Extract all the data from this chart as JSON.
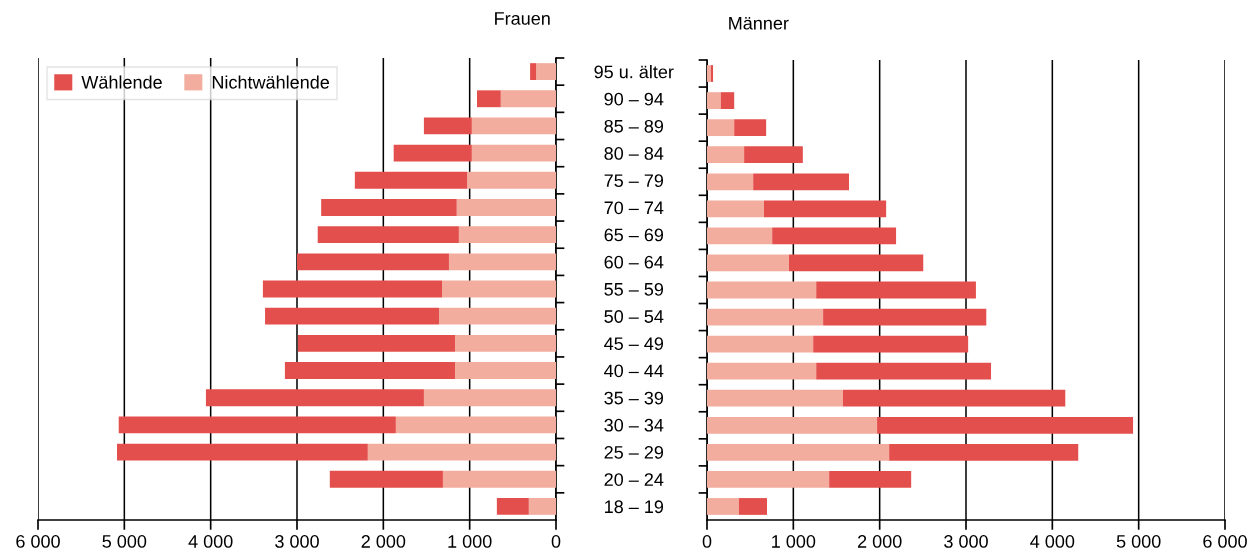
{
  "chart_data": [
    {
      "type": "bar",
      "title": "Frauen",
      "orientation": "horizontal",
      "stacked": true,
      "categories": [
        "95 u. älter",
        "90 – 94",
        "85 – 89",
        "80 – 84",
        "75 – 79",
        "70 – 74",
        "65 – 69",
        "60 – 64",
        "55 – 59",
        "50 – 54",
        "45 – 49",
        "40 – 44",
        "35 – 39",
        "30 – 34",
        "25 – 29",
        "20 – 24",
        "18 – 19"
      ],
      "series": [
        {
          "name": "Nichtwählende",
          "color": "#f2ad9e",
          "values": [
            230,
            640,
            975,
            975,
            1030,
            1150,
            1125,
            1240,
            1320,
            1355,
            1170,
            1170,
            1530,
            1855,
            2180,
            1310,
            315
          ]
        },
        {
          "name": "Wählende",
          "color": "#e34f4c",
          "values": [
            70,
            275,
            555,
            905,
            1300,
            1570,
            1635,
            1760,
            2075,
            2015,
            1820,
            1970,
            2525,
            3210,
            2905,
            1310,
            370
          ]
        }
      ],
      "xlim": [
        6000,
        0
      ],
      "xticks": [
        {
          "value": 6000,
          "label": "6 000"
        },
        {
          "value": 5000,
          "label": "5 000"
        },
        {
          "value": 4000,
          "label": "4 000"
        },
        {
          "value": 3000,
          "label": "3 000"
        },
        {
          "value": 2000,
          "label": "2 000"
        },
        {
          "value": 1000,
          "label": "1 000"
        },
        0
      ],
      "grid": "x",
      "legend": "top left"
    },
    {
      "type": "bar",
      "title": "Männer",
      "orientation": "horizontal",
      "stacked": true,
      "categories": [
        null,
        null,
        null,
        null,
        null,
        null,
        null,
        null,
        null,
        null,
        null,
        null,
        null,
        null,
        null,
        null,
        null
      ],
      "series": [
        {
          "color": "#f2ad9e",
          "values": [
            45,
            160,
            315,
            430,
            535,
            660,
            755,
            950,
            1265,
            1345,
            1230,
            1265,
            1575,
            1970,
            2110,
            1415,
            370
          ]
        },
        {
          "color": "#e34f4c",
          "values": [
            25,
            155,
            370,
            680,
            1110,
            1415,
            1435,
            1555,
            1850,
            1890,
            1795,
            2025,
            2575,
            2965,
            2190,
            950,
            325
          ]
        }
      ],
      "xlim": [
        0,
        6000
      ],
      "xticks": [
        0,
        {
          "value": 1000,
          "label": "1 000"
        },
        {
          "value": 2000,
          "label": "2 000"
        },
        {
          "value": 3000,
          "label": "3 000"
        },
        {
          "value": 4000,
          "label": "4 000"
        },
        {
          "value": 5000,
          "label": "5 000"
        },
        {
          "value": 6000,
          "label": "6 000"
        }
      ],
      "grid": "x"
    }
  ]
}
